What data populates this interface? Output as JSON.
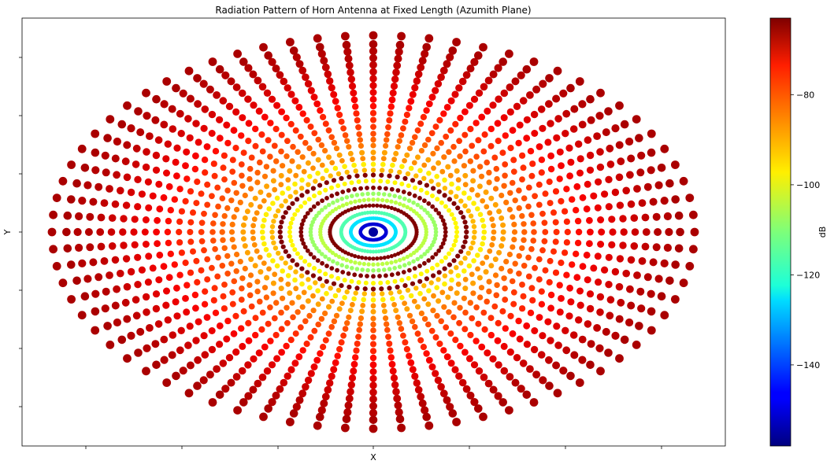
{
  "chart_data": {
    "type": "scatter",
    "title": "Radiation Pattern of Horn Antenna at Fixed Length (Azumith Plane)",
    "xlabel": "X",
    "ylabel": "Y",
    "x_ticks_labeled": false,
    "y_ticks_labeled": false,
    "grid": false,
    "legend": "none",
    "marker": "circle",
    "colormap": "jet",
    "colorbar": {
      "label": "dB",
      "range": [
        -158,
        -63
      ],
      "ticks": [
        -80,
        -100,
        -120,
        -140
      ],
      "tick_labels": [
        "−80",
        "−100",
        "−120",
        "−140"
      ],
      "position": "right"
    },
    "polar_grid": {
      "spokes": 72,
      "outer_radius": 1.0,
      "center_value_db": -155
    },
    "rings": [
      {
        "r": 0.04,
        "db": -150
      },
      {
        "r": 0.07,
        "db": -125
      },
      {
        "r": 0.1,
        "db": -115
      },
      {
        "r": 0.135,
        "db": -63
      },
      {
        "r": 0.165,
        "db": -105
      },
      {
        "r": 0.195,
        "db": -108
      },
      {
        "r": 0.225,
        "db": -63
      },
      {
        "r": 0.26,
        "db": -98
      },
      {
        "r": 0.29,
        "db": -63
      },
      {
        "r": 0.315,
        "db": -92
      },
      {
        "r": 0.345,
        "db": -97
      },
      {
        "r": 0.375,
        "db": -88
      },
      {
        "r": 0.405,
        "db": -90
      },
      {
        "r": 0.44,
        "db": -86
      },
      {
        "r": 0.47,
        "db": -84
      },
      {
        "r": 0.5,
        "db": -82
      },
      {
        "r": 0.535,
        "db": -80
      },
      {
        "r": 0.57,
        "db": -79
      },
      {
        "r": 0.605,
        "db": -78
      },
      {
        "r": 0.64,
        "db": -76
      },
      {
        "r": 0.675,
        "db": -74
      },
      {
        "r": 0.71,
        "db": -73
      },
      {
        "r": 0.745,
        "db": -72
      },
      {
        "r": 0.78,
        "db": -71
      },
      {
        "r": 0.815,
        "db": -70
      },
      {
        "r": 0.85,
        "db": -69
      },
      {
        "r": 0.885,
        "db": -68
      },
      {
        "r": 0.92,
        "db": -68
      },
      {
        "r": 0.955,
        "db": -67
      },
      {
        "r": 1.0,
        "db": -67
      }
    ]
  }
}
